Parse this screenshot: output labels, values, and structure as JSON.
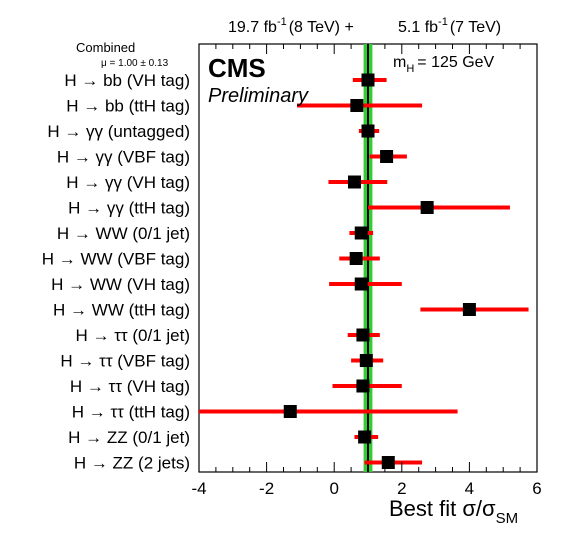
{
  "header": {
    "lumi_8tev": "19.7 fb",
    "lumi_8tev_sup": "-1",
    "lumi_8tev_energy": "(8 TeV) +",
    "lumi_7tev": "5.1 fb",
    "lumi_7tev_sup": "-1",
    "lumi_7tev_energy": "(7 TeV)"
  },
  "experiment": "CMS",
  "status": "Preliminary",
  "mass_label": "m",
  "mass_sub": "H",
  "mass_value": "= 125 GeV",
  "combined": {
    "label": "Combined",
    "mu_text": "μ = 1.00 ± 0.13"
  },
  "xaxis": {
    "label_main": "Best fit σ/σ",
    "label_sub": "SM"
  },
  "colors": {
    "band": "#33cc33",
    "line": "#000000",
    "error": "#ff0000",
    "marker": "#000000"
  },
  "chart_data": {
    "type": "scatter",
    "orientation": "horizontal-errorbars",
    "xlim": [
      -4,
      6
    ],
    "xticks": [
      "-4",
      "-2",
      "0",
      "2",
      "4",
      "6"
    ],
    "combined_mu": 1.0,
    "combined_err": 0.13,
    "categories": [
      "H → bb (VH tag)",
      "H → bb (ttH tag)",
      "H → γγ (untagged)",
      "H → γγ (VBF tag)",
      "H → γγ (VH tag)",
      "H → γγ (ttH tag)",
      "H → WW (0/1 jet)",
      "H → WW (VBF tag)",
      "H → WW (VH tag)",
      "H → WW (ttH tag)",
      "H → ττ (0/1 jet)",
      "H → ττ (VBF tag)",
      "H → ττ (VH tag)",
      "H → ττ (ttH tag)",
      "H → ZZ (0/1 jet)",
      "H → ZZ (2 jets)"
    ],
    "values": [
      1.0,
      0.67,
      1.0,
      1.55,
      0.6,
      2.75,
      0.8,
      0.65,
      0.8,
      4.0,
      0.85,
      0.95,
      0.85,
      -1.3,
      0.9,
      1.6
    ],
    "err_low": [
      0.45,
      1.77,
      0.27,
      0.5,
      0.77,
      1.75,
      0.35,
      0.5,
      0.95,
      1.45,
      0.45,
      0.45,
      0.9,
      2.7,
      0.3,
      0.7
    ],
    "err_high": [
      0.55,
      1.93,
      0.33,
      0.6,
      0.97,
      2.45,
      0.35,
      0.7,
      1.2,
      1.75,
      0.5,
      0.5,
      1.15,
      4.95,
      0.4,
      1.0
    ]
  }
}
